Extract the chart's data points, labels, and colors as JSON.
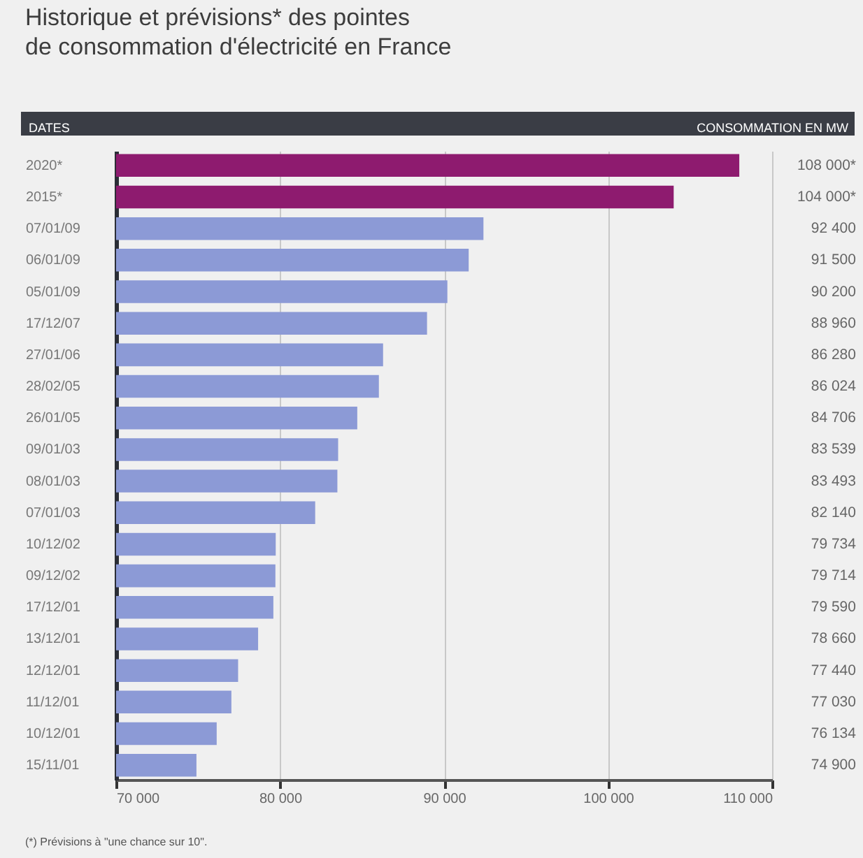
{
  "chart_data": {
    "type": "bar",
    "orientation": "horizontal",
    "title": "Historique et prévisions* des pointes de consommation d'électricité en France",
    "ylabel": "DATES",
    "xlabel": "CONSOMMATION EN MW",
    "categories": [
      "2020*",
      "2015*",
      "07/01/09",
      "06/01/09",
      "05/01/09",
      "17/12/07",
      "27/01/06",
      "28/02/05",
      "26/01/05",
      "09/01/03",
      "08/01/03",
      "07/01/03",
      "10/12/02",
      "09/12/02",
      "17/12/01",
      "13/12/01",
      "12/12/01",
      "11/12/01",
      "10/12/01",
      "15/11/01"
    ],
    "values": [
      108000,
      104000,
      92400,
      91500,
      90200,
      88960,
      86280,
      86024,
      84706,
      83539,
      83493,
      82140,
      79734,
      79714,
      79590,
      78660,
      77440,
      77030,
      76134,
      74900
    ],
    "value_labels": [
      "108 000*",
      "104 000*",
      "92 400",
      "91 500",
      "90 200",
      "88 960",
      "86 280",
      "86 024",
      "84 706",
      "83 539",
      "83 493",
      "82 140",
      "79 734",
      "79 714",
      "79 590",
      "78 660",
      "77 440",
      "77 030",
      "76 134",
      "74 900"
    ],
    "colors": [
      "#8e1b6f",
      "#8e1b6f",
      "#8c9ad6",
      "#8c9ad6",
      "#8c9ad6",
      "#8c9ad6",
      "#8c9ad6",
      "#8c9ad6",
      "#8c9ad6",
      "#8c9ad6",
      "#8c9ad6",
      "#8c9ad6",
      "#8c9ad6",
      "#8c9ad6",
      "#8c9ad6",
      "#8c9ad6",
      "#8c9ad6",
      "#8c9ad6",
      "#8c9ad6",
      "#8c9ad6"
    ],
    "xlim": [
      70000,
      110000
    ],
    "xticks": [
      {
        "value": 70000,
        "label": "70 000"
      },
      {
        "value": 80000,
        "label": "80 000"
      },
      {
        "value": 90000,
        "label": "90 000"
      },
      {
        "value": 100000,
        "label": "100 000"
      },
      {
        "value": 110000,
        "label": "110 000"
      }
    ],
    "grid": "x",
    "annotations": [
      "(*) Prévisions à \"une chance sur 10\"."
    ]
  }
}
